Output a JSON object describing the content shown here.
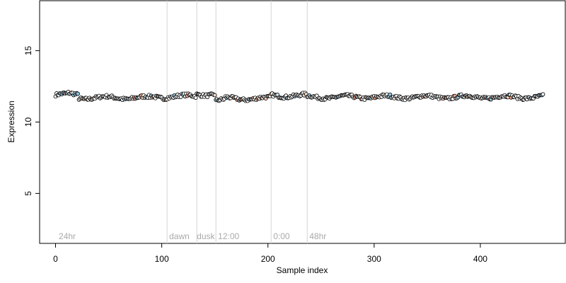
{
  "chart_data": {
    "type": "scatter",
    "title": "",
    "xlabel": "Sample index",
    "ylabel": "Expression",
    "xlim": [
      -15,
      480
    ],
    "ylim": [
      1.5,
      18.5
    ],
    "x_ticks": [
      0,
      100,
      200,
      300,
      400
    ],
    "y_ticks": [
      5,
      10,
      15
    ],
    "grid": false,
    "legend": "none",
    "phase_boundaries": [
      105,
      133,
      151,
      203,
      237
    ],
    "phase_labels": [
      {
        "x": 3,
        "label": "24hr"
      },
      {
        "x": 107,
        "label": "dawn"
      },
      {
        "x": 133,
        "label": "dusk"
      },
      {
        "x": 153,
        "label": "12:00"
      },
      {
        "x": 205,
        "label": "0:00"
      },
      {
        "x": 239,
        "label": "48hr"
      }
    ],
    "point_count": 460,
    "mean_level": 11.75,
    "segments": [
      {
        "from": 0,
        "to": 12,
        "level": 11.9
      },
      {
        "from": 12,
        "to": 22,
        "level": 11.95
      },
      {
        "from": 22,
        "to": 30,
        "level": 11.7
      },
      {
        "from": 30,
        "to": 90,
        "level": 11.7
      },
      {
        "from": 90,
        "to": 105,
        "level": 11.75
      },
      {
        "from": 105,
        "to": 133,
        "level": 11.8
      },
      {
        "from": 133,
        "to": 151,
        "level": 11.95
      },
      {
        "from": 151,
        "to": 160,
        "level": 11.5
      },
      {
        "from": 160,
        "to": 203,
        "level": 11.65
      },
      {
        "from": 203,
        "to": 237,
        "level": 11.85
      },
      {
        "from": 237,
        "to": 460,
        "level": 11.75
      }
    ],
    "colors": {
      "point_stroke": "#000000",
      "point_fills": [
        "#ffffff",
        "#f4a582",
        "#92c5de",
        "#fddbc7",
        "#d1e5f0"
      ],
      "trend_line": "#c0c0c0",
      "boundary_line": "#d3d3d3",
      "phase_label": "#a9a9a9"
    }
  }
}
